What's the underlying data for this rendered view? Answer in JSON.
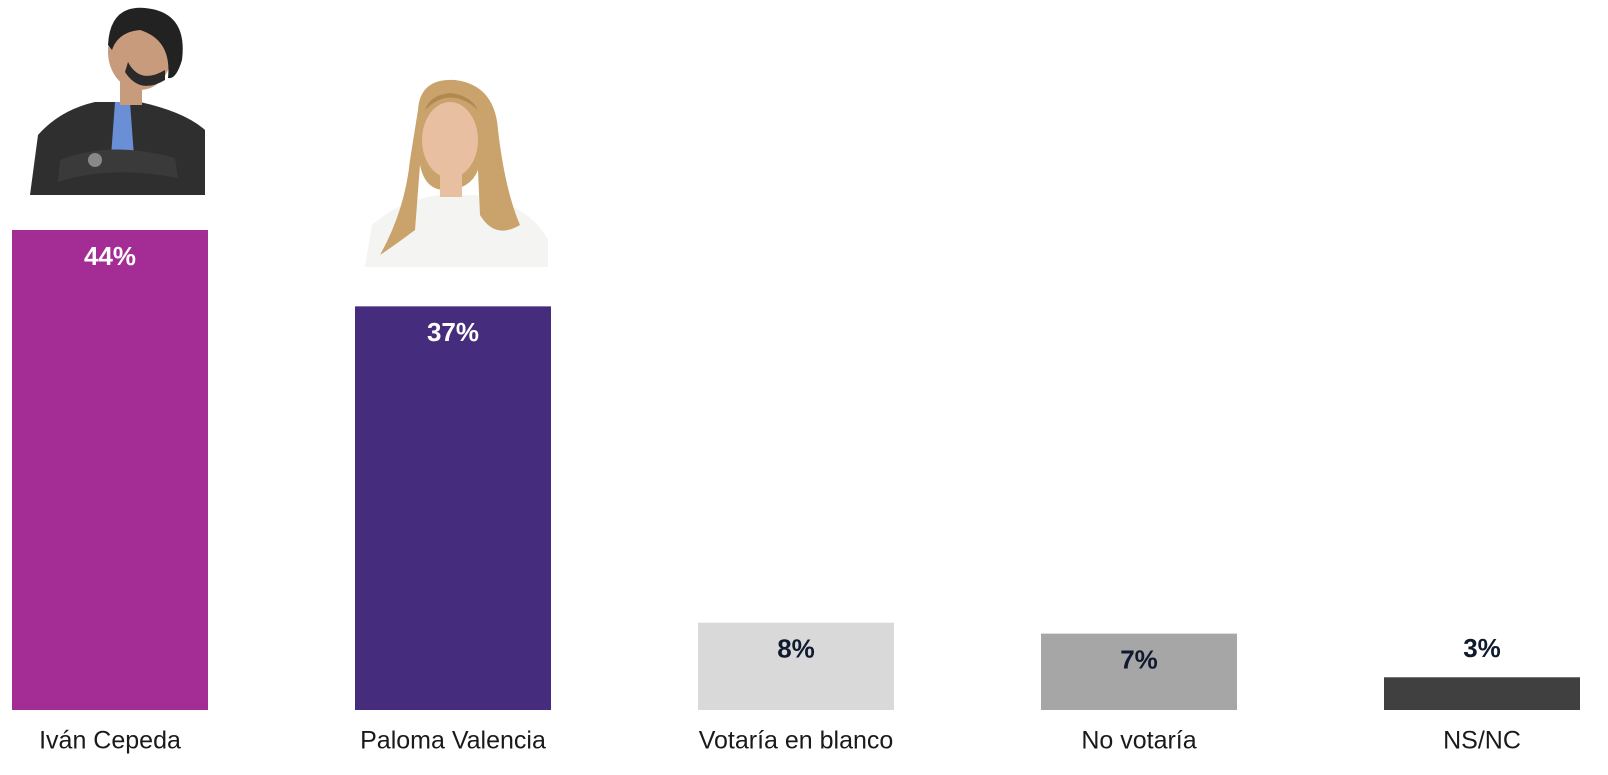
{
  "chart_data": {
    "type": "bar",
    "categories": [
      "Iván Cepeda",
      "Paloma Valencia",
      "Votaría en blanco",
      "No votaría",
      "NS/NC"
    ],
    "values": [
      44,
      37,
      8,
      7,
      3
    ],
    "value_labels": [
      "44%",
      "37%",
      "8%",
      "7%",
      "3%"
    ],
    "colors": [
      "#a42d95",
      "#452c7c",
      "#d9d9d9",
      "#a6a6a6",
      "#404040"
    ]
  }
}
